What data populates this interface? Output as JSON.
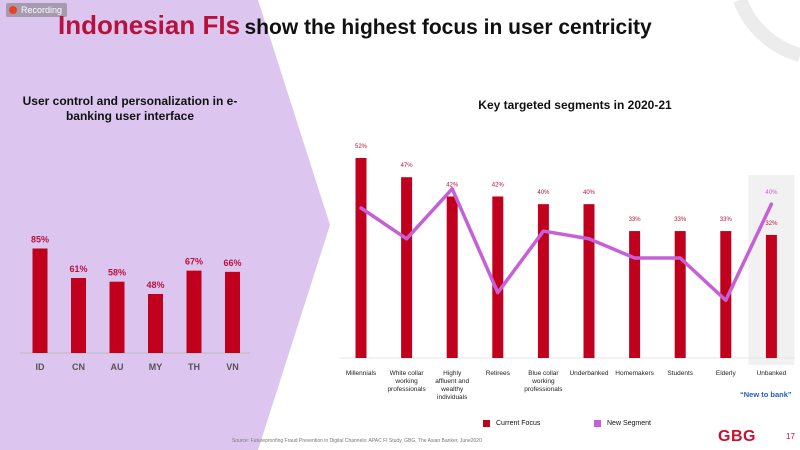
{
  "recording_label": "Recording",
  "title_highlight": "Indonesian FIs",
  "title_rest": "show the highest focus in user centricity",
  "colors": {
    "bar": "#c0001c",
    "line": "#c660d6",
    "panel": "#dcc6f0",
    "accent": "#b5123e"
  },
  "chart_data": [
    {
      "type": "bar",
      "title": "User control and personalization in e-banking user interface",
      "categories": [
        "ID",
        "CN",
        "AU",
        "MY",
        "TH",
        "VN"
      ],
      "values": [
        85,
        61,
        58,
        48,
        67,
        66
      ],
      "value_labels": [
        "85%",
        "61%",
        "58%",
        "48%",
        "67%",
        "66%"
      ],
      "ylim": [
        0,
        100
      ],
      "grid": false
    },
    {
      "type": "bar+line",
      "title": "Key targeted segments in 2020-21",
      "categories": [
        "Millennials",
        "White collar working professionals",
        "Highly affluent and wealthy individuals",
        "Retirees",
        "Blue collar working professionals",
        "Underbanked",
        "Homemakers",
        "Students",
        "Elderly",
        "Unbanked"
      ],
      "series": [
        {
          "name": "Current Focus",
          "values": [
            52,
            47,
            42,
            42,
            40,
            40,
            33,
            33,
            33,
            32
          ],
          "value_labels": [
            "52%",
            "47%",
            "42%",
            "42%",
            "40%",
            "40%",
            "33%",
            "33%",
            "33%",
            "32%"
          ]
        },
        {
          "name": "New Segment",
          "values": [
            39,
            31,
            44,
            17,
            33,
            31,
            26,
            26,
            15,
            40
          ],
          "value_labels": [
            "",
            "",
            "",
            "",
            "",
            "",
            "",
            "",
            "",
            "40%"
          ]
        }
      ],
      "ylim": [
        0,
        60
      ],
      "highlight_category": "Unbanked",
      "annotation": "“New to bank”",
      "legend": "bottom",
      "grid": false
    }
  ],
  "source": "Source:  Futureproofing Fraud Prevention in Digital Channels: APAC FI Study, GBG, The Asian Banker, June2020",
  "logo": "GBG",
  "page_number": "17"
}
